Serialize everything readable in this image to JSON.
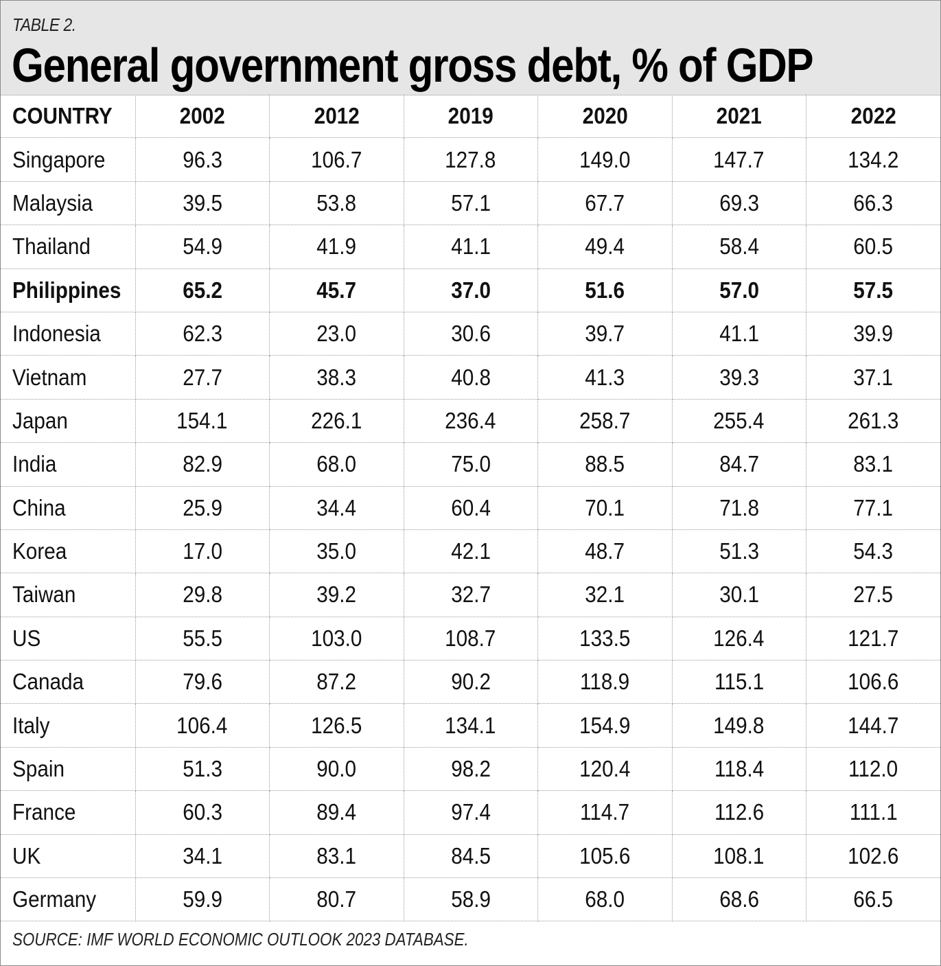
{
  "table_label": "TABLE 2.",
  "chart_data": {
    "type": "table",
    "title": "General government gross debt, % of GDP",
    "columns": [
      "COUNTRY",
      "2002",
      "2012",
      "2019",
      "2020",
      "2021",
      "2022"
    ],
    "rows": [
      {
        "country": "Singapore",
        "values": [
          "96.3",
          "106.7",
          "127.8",
          "149.0",
          "147.7",
          "134.2"
        ]
      },
      {
        "country": "Malaysia",
        "values": [
          "39.5",
          "53.8",
          "57.1",
          "67.7",
          "69.3",
          "66.3"
        ]
      },
      {
        "country": "Thailand",
        "values": [
          "54.9",
          "41.9",
          "41.1",
          "49.4",
          "58.4",
          "60.5"
        ]
      },
      {
        "country": "Philippines",
        "values": [
          "65.2",
          "45.7",
          "37.0",
          "51.6",
          "57.0",
          "57.5"
        ],
        "highlighted": true
      },
      {
        "country": "Indonesia",
        "values": [
          "62.3",
          "23.0",
          "30.6",
          "39.7",
          "41.1",
          "39.9"
        ]
      },
      {
        "country": "Vietnam",
        "values": [
          "27.7",
          "38.3",
          "40.8",
          "41.3",
          "39.3",
          "37.1"
        ]
      },
      {
        "country": "Japan",
        "values": [
          "154.1",
          "226.1",
          "236.4",
          "258.7",
          "255.4",
          "261.3"
        ]
      },
      {
        "country": "India",
        "values": [
          "82.9",
          "68.0",
          "75.0",
          "88.5",
          "84.7",
          "83.1"
        ]
      },
      {
        "country": "China",
        "values": [
          "25.9",
          "34.4",
          "60.4",
          "70.1",
          "71.8",
          "77.1"
        ]
      },
      {
        "country": "Korea",
        "values": [
          "17.0",
          "35.0",
          "42.1",
          "48.7",
          "51.3",
          "54.3"
        ]
      },
      {
        "country": "Taiwan",
        "values": [
          "29.8",
          "39.2",
          "32.7",
          "32.1",
          "30.1",
          "27.5"
        ]
      },
      {
        "country": "US",
        "values": [
          "55.5",
          "103.0",
          "108.7",
          "133.5",
          "126.4",
          "121.7"
        ]
      },
      {
        "country": "Canada",
        "values": [
          "79.6",
          "87.2",
          "90.2",
          "118.9",
          "115.1",
          "106.6"
        ]
      },
      {
        "country": "Italy",
        "values": [
          "106.4",
          "126.5",
          "134.1",
          "154.9",
          "149.8",
          "144.7"
        ]
      },
      {
        "country": "Spain",
        "values": [
          "51.3",
          "90.0",
          "98.2",
          "120.4",
          "118.4",
          "112.0"
        ]
      },
      {
        "country": "France",
        "values": [
          "60.3",
          "89.4",
          "97.4",
          "114.7",
          "112.6",
          "111.1"
        ]
      },
      {
        "country": "UK",
        "values": [
          "34.1",
          "83.1",
          "84.5",
          "105.6",
          "108.1",
          "102.6"
        ]
      },
      {
        "country": "Germany",
        "values": [
          "59.9",
          "80.7",
          "58.9",
          "68.0",
          "68.6",
          "66.5"
        ]
      }
    ]
  },
  "source": "SOURCE: IMF WORLD ECONOMIC OUTLOOK 2023 DATABASE.",
  "colors": {
    "header_background": "#e6e6e6",
    "text": "#111111",
    "grid_lines": "#9a9a9a"
  }
}
